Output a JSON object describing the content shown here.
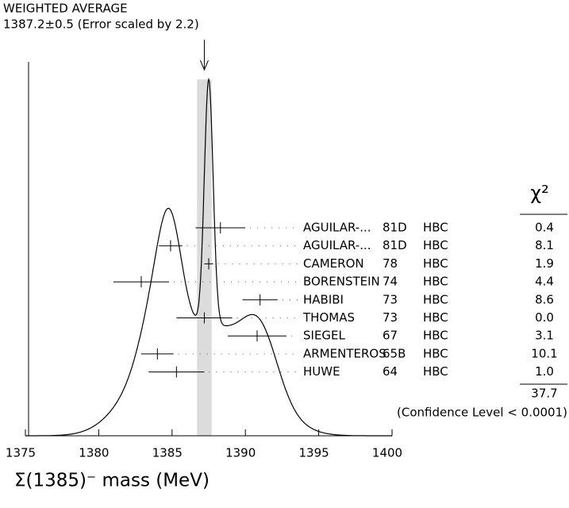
{
  "chart_data": {
    "type": "ideogram",
    "title": "WEIGHTED AVERAGE",
    "average": {
      "value": 1387.2,
      "error": 0.5,
      "label": "1387.2±0.5 (Error scaled by 2.2)"
    },
    "x_label": "Σ(1385)⁻ mass (MeV)",
    "xlim": [
      1375,
      1400
    ],
    "xticks": [
      1375,
      1380,
      1385,
      1390,
      1395,
      1400
    ],
    "chi2_header": "χ²",
    "measurements": [
      {
        "name": "AGUILAR-...",
        "year": "81D",
        "tech": "HBC",
        "chi2": "0.4",
        "value": 1388.3,
        "error": 1.7
      },
      {
        "name": "AGUILAR-...",
        "year": "81D",
        "tech": "HBC",
        "chi2": "8.1",
        "value": 1384.9,
        "error": 0.8
      },
      {
        "name": "CAMERON",
        "year": "78",
        "tech": "HBC",
        "chi2": "1.9",
        "value": 1387.5,
        "error": 0.3
      },
      {
        "name": "BORENSTEIN",
        "year": "74",
        "tech": "HBC",
        "chi2": "4.4",
        "value": 1382.9,
        "error": 1.9
      },
      {
        "name": "HABIBI",
        "year": "73",
        "tech": "HBC",
        "chi2": "8.6",
        "value": 1391.0,
        "error": 1.2
      },
      {
        "name": "THOMAS",
        "year": "73",
        "tech": "HBC",
        "chi2": "0.0",
        "value": 1387.2,
        "error": 1.9
      },
      {
        "name": "SIEGEL",
        "year": "67",
        "tech": "HBC",
        "chi2": "3.1",
        "value": 1390.8,
        "error": 2.0
      },
      {
        "name": "ARMENTEROS",
        "year": "65B",
        "tech": "HBC",
        "chi2": "10.1",
        "value": 1384.0,
        "error": 1.1
      },
      {
        "name": "HUWE",
        "year": "64",
        "tech": "HBC",
        "chi2": "1.0",
        "value": 1385.3,
        "error": 1.9
      }
    ],
    "chi2_total": "37.7",
    "confidence_level": "(Confidence Level < 0.0001)",
    "band_color": "#dcdcdc"
  }
}
